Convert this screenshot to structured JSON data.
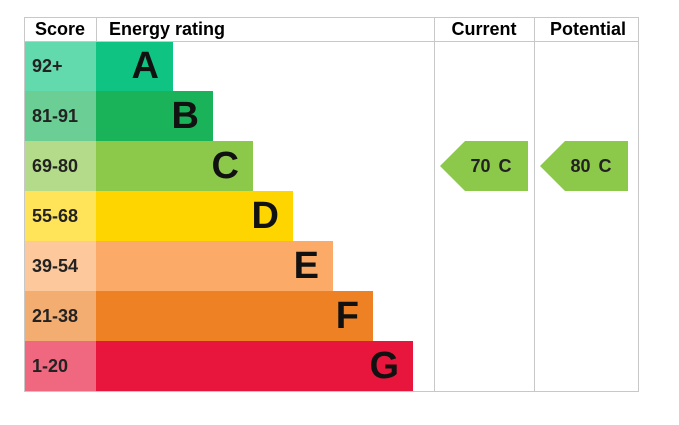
{
  "headers": {
    "score": "Score",
    "rating": "Energy rating",
    "current": "Current",
    "potential": "Potential"
  },
  "bands": [
    {
      "score": "92+",
      "letter": "A",
      "color": "#0fc482"
    },
    {
      "score": "81-91",
      "letter": "B",
      "color": "#1bb35a"
    },
    {
      "score": "69-80",
      "letter": "C",
      "color": "#8cc84a"
    },
    {
      "score": "55-68",
      "letter": "D",
      "color": "#ffd500"
    },
    {
      "score": "39-54",
      "letter": "E",
      "color": "#fbaa67"
    },
    {
      "score": "21-38",
      "letter": "F",
      "color": "#ee8124"
    },
    {
      "score": "1-20",
      "letter": "G",
      "color": "#e8163c"
    }
  ],
  "current": {
    "value": 70,
    "rating": "C"
  },
  "potential": {
    "value": 80,
    "rating": "C"
  }
}
